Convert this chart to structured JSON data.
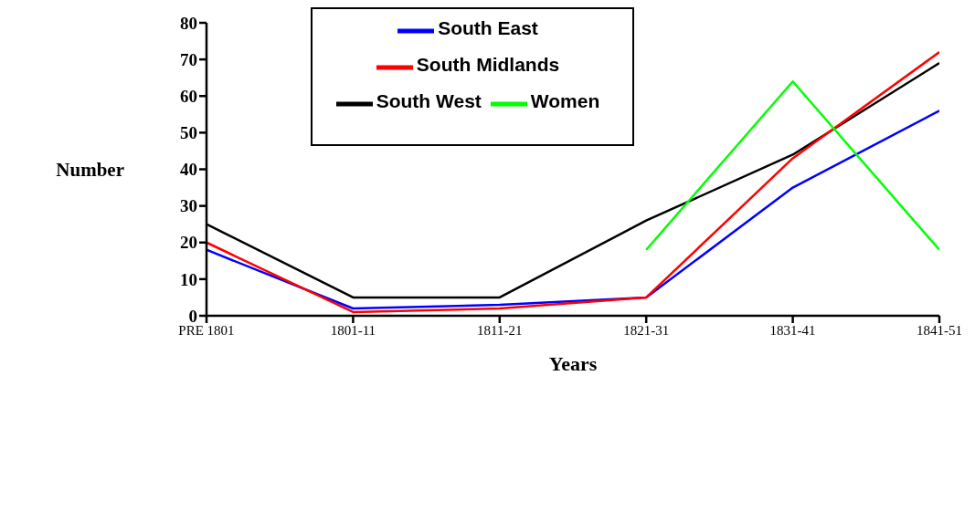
{
  "chart_data": {
    "type": "line",
    "xlabel": "Years",
    "ylabel": "Number",
    "categories": [
      "PRE 1801",
      "1801-11",
      "1811-21",
      "1821-31",
      "1831-41",
      "1841-51"
    ],
    "series": [
      {
        "name": "South East",
        "color": "#0000ff",
        "values": [
          18,
          2,
          3,
          5,
          35,
          56
        ]
      },
      {
        "name": "South West",
        "color": "#000000",
        "values": [
          25,
          5,
          5,
          26,
          44,
          69
        ]
      },
      {
        "name": "South Midlands",
        "color": "#ff0000",
        "values": [
          20,
          1,
          2,
          5,
          43,
          72
        ]
      },
      {
        "name": "Women",
        "color": "#00ff00",
        "values": [
          null,
          null,
          null,
          18,
          64,
          18
        ]
      }
    ],
    "ylim": [
      0,
      80
    ],
    "yticks": [
      0,
      10,
      20,
      30,
      40,
      50,
      60,
      70,
      80
    ],
    "grid": false,
    "legend": "top",
    "marker": "none",
    "line_style": "solid"
  }
}
